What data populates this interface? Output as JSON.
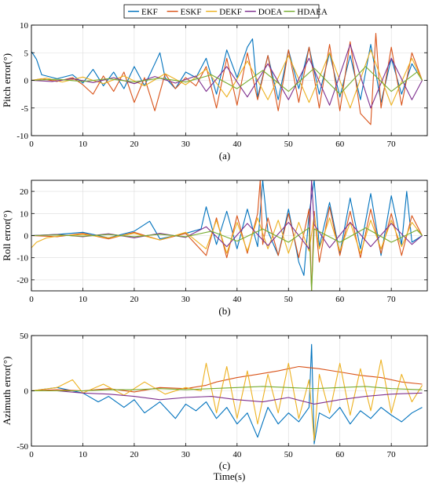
{
  "legend": {
    "entries": [
      {
        "name": "EKF",
        "color": "#0072BD"
      },
      {
        "name": "ESKF",
        "color": "#D95319"
      },
      {
        "name": "DEKF",
        "color": "#EDB120"
      },
      {
        "name": "DOEA",
        "color": "#7E2F8E"
      },
      {
        "name": "HDAEA",
        "color": "#77AC30"
      }
    ],
    "placement": "top-center"
  },
  "xlabel": "Time(s)",
  "chart_data": [
    {
      "type": "line",
      "caption": "(a)",
      "ylabel": "Pitch error(°)",
      "xlim": [
        0,
        77
      ],
      "ylim": [
        -10,
        10
      ],
      "xticks": [
        0,
        10,
        20,
        30,
        40,
        50,
        60,
        70
      ],
      "yticks": [
        -10,
        -5,
        0,
        5,
        10
      ],
      "grid": true,
      "series": [
        {
          "name": "EKF",
          "x": [
            0,
            1,
            2,
            5,
            8,
            10,
            12,
            14,
            16,
            18,
            20,
            22,
            24,
            25,
            26,
            28,
            30,
            32,
            34,
            36,
            38,
            40,
            42,
            43,
            44,
            46,
            48,
            50,
            52,
            54,
            56,
            58,
            60,
            62,
            64,
            66,
            68,
            70,
            72,
            74,
            76
          ],
          "y": [
            5.2,
            3.8,
            1.0,
            0.3,
            1.0,
            -0.5,
            2.0,
            -1.0,
            1.5,
            -1.5,
            2.5,
            -1.0,
            3.0,
            5.0,
            0.5,
            -1.5,
            1.5,
            0.5,
            4.0,
            -2.5,
            5.5,
            0.5,
            6.0,
            7.5,
            -3.0,
            4.5,
            -3.5,
            5.5,
            -1.5,
            6.0,
            -2.5,
            5.0,
            -3.0,
            4.5,
            -3.5,
            6.5,
            -4.0,
            4.0,
            -2.5,
            3.0,
            0.0
          ]
        },
        {
          "name": "ESKF",
          "x": [
            0,
            2,
            5,
            8,
            10,
            12,
            14,
            16,
            18,
            20,
            22,
            24,
            26,
            28,
            30,
            32,
            34,
            36,
            38,
            40,
            42,
            44,
            46,
            48,
            50,
            52,
            54,
            56,
            58,
            60,
            62,
            64,
            66,
            67,
            68,
            70,
            72,
            74,
            76
          ],
          "y": [
            0.0,
            0.3,
            -0.2,
            0.5,
            -0.8,
            -2.5,
            0.8,
            -2.0,
            1.5,
            -4.0,
            0.5,
            -5.5,
            1.2,
            -1.5,
            0.5,
            -1.0,
            2.5,
            -5.0,
            4.0,
            -4.5,
            5.0,
            -3.5,
            4.5,
            -5.5,
            5.5,
            -4.0,
            6.0,
            -5.0,
            6.5,
            -5.5,
            7.0,
            -6.0,
            -8.0,
            8.5,
            -5.0,
            6.0,
            -4.5,
            5.0,
            0.0
          ]
        },
        {
          "name": "DEKF",
          "x": [
            0,
            3,
            6,
            10,
            14,
            18,
            22,
            26,
            30,
            34,
            38,
            42,
            46,
            50,
            54,
            58,
            62,
            66,
            70,
            74,
            76
          ],
          "y": [
            0.0,
            0.4,
            -0.3,
            0.6,
            -0.6,
            0.8,
            -1.0,
            1.2,
            -0.8,
            2.0,
            -3.0,
            3.5,
            -3.5,
            4.5,
            -4.0,
            5.0,
            -5.0,
            5.5,
            -4.5,
            4.0,
            0.0
          ]
        },
        {
          "name": "DOEA",
          "x": [
            0,
            4,
            8,
            12,
            16,
            20,
            24,
            28,
            32,
            34,
            38,
            42,
            46,
            50,
            54,
            58,
            62,
            66,
            70,
            74,
            76
          ],
          "y": [
            0.0,
            -0.2,
            0.3,
            -0.4,
            0.5,
            -0.6,
            0.7,
            -0.5,
            0.8,
            -2.0,
            2.5,
            -3.0,
            3.0,
            -3.5,
            4.0,
            -4.5,
            6.5,
            -5.0,
            4.0,
            -3.5,
            0.0
          ]
        },
        {
          "name": "HDAEA",
          "x": [
            0,
            5,
            10,
            15,
            20,
            25,
            30,
            35,
            40,
            45,
            50,
            55,
            60,
            65,
            70,
            75,
            76
          ],
          "y": [
            0.0,
            0.2,
            -0.2,
            0.3,
            -0.3,
            0.4,
            -0.3,
            1.0,
            -1.5,
            1.8,
            -2.0,
            2.2,
            -2.5,
            2.5,
            -2.0,
            1.5,
            0.0
          ]
        }
      ]
    },
    {
      "type": "line",
      "caption": "(b)",
      "ylabel": "Roll error(°)",
      "xlim": [
        0,
        77
      ],
      "ylim": [
        -25,
        25
      ],
      "xticks": [
        0,
        10,
        20,
        30,
        40,
        50,
        60,
        70
      ],
      "yticks": [
        -20,
        -10,
        0,
        10,
        20
      ],
      "grid": true,
      "series": [
        {
          "name": "EKF",
          "x": [
            0,
            5,
            10,
            15,
            20,
            23,
            25,
            30,
            33,
            34,
            36,
            38,
            40,
            42,
            44,
            45,
            46,
            48,
            50,
            52,
            53,
            54,
            55,
            56,
            58,
            60,
            62,
            64,
            66,
            68,
            70,
            72,
            73,
            74,
            76
          ],
          "y": [
            0.0,
            0.5,
            1.5,
            -1.0,
            2.0,
            6.5,
            -1.5,
            1.0,
            3.0,
            13.0,
            -4.0,
            11.0,
            -6.0,
            12.0,
            -5.0,
            25.0,
            2.0,
            -9.0,
            12.0,
            -12.0,
            -18.0,
            10.0,
            25.0,
            -5.0,
            15.0,
            -8.0,
            17.0,
            -6.0,
            19.0,
            -9.0,
            18.0,
            -4.0,
            20.0,
            -3.0,
            0.0
          ]
        },
        {
          "name": "ESKF",
          "x": [
            0,
            5,
            10,
            15,
            20,
            25,
            30,
            34,
            36,
            38,
            40,
            42,
            44,
            44.5,
            45,
            46,
            48,
            50,
            52,
            54,
            54.5,
            55,
            56,
            58,
            60,
            62,
            64,
            66,
            68,
            70,
            72,
            74,
            76
          ],
          "y": [
            0.0,
            -0.5,
            1.0,
            -1.5,
            1.5,
            -2.0,
            1.0,
            -9.0,
            8.0,
            -10.0,
            9.0,
            -8.0,
            10.0,
            25.0,
            -4.0,
            8.0,
            -9.0,
            10.0,
            -10.0,
            12.0,
            -25.0,
            11.0,
            -12.0,
            13.0,
            -9.0,
            11.0,
            -10.0,
            12.0,
            -8.0,
            10.0,
            -9.0,
            9.0,
            0.0
          ]
        },
        {
          "name": "DEKF",
          "x": [
            0,
            1,
            3,
            6,
            10,
            15,
            20,
            25,
            30,
            34,
            36,
            38,
            40,
            42,
            44,
            46,
            48,
            50,
            52,
            54,
            55,
            56,
            58,
            60,
            62,
            64,
            66,
            68,
            70,
            72,
            74,
            76
          ],
          "y": [
            -5.5,
            -3.0,
            -1.0,
            0.0,
            0.5,
            -1.0,
            1.0,
            -2.0,
            1.5,
            -6.0,
            7.0,
            -8.0,
            6.0,
            -7.0,
            8.0,
            -6.0,
            7.0,
            -8.0,
            6.0,
            -7.0,
            9.0,
            -6.0,
            8.0,
            -7.0,
            6.0,
            -8.0,
            7.0,
            -6.0,
            7.0,
            -5.0,
            6.0,
            0.0
          ]
        },
        {
          "name": "DOEA",
          "x": [
            0,
            5,
            10,
            15,
            20,
            25,
            30,
            34,
            38,
            42,
            46,
            50,
            54,
            54.5,
            55,
            58,
            62,
            66,
            70,
            74,
            76
          ],
          "y": [
            0.0,
            0.5,
            -0.5,
            0.8,
            -1.0,
            1.0,
            -0.8,
            4.0,
            -5.0,
            5.5,
            -4.5,
            6.0,
            -6.0,
            25.0,
            5.0,
            -5.5,
            6.0,
            -5.0,
            5.5,
            -4.0,
            0.0
          ]
        },
        {
          "name": "HDAEA",
          "x": [
            0,
            5,
            10,
            15,
            20,
            25,
            30,
            35,
            40,
            45,
            50,
            54,
            54.5,
            55,
            60,
            65,
            70,
            75,
            76
          ],
          "y": [
            0.0,
            0.3,
            -0.3,
            0.5,
            -0.5,
            0.6,
            -0.5,
            2.0,
            -2.5,
            3.0,
            -3.0,
            3.5,
            -25.0,
            3.0,
            -3.0,
            3.5,
            -3.0,
            2.5,
            0.0
          ]
        }
      ]
    },
    {
      "type": "line",
      "caption": "(c)",
      "ylabel": "Azimuth error(°)",
      "xlim": [
        0,
        77
      ],
      "ylim": [
        -50,
        50
      ],
      "xticks": [
        0,
        10,
        20,
        30,
        40,
        50,
        60,
        70
      ],
      "yticks": [
        -50,
        0,
        50
      ],
      "grid": true,
      "series": [
        {
          "name": "EKF",
          "x": [
            0,
            5,
            10,
            13,
            15,
            18,
            20,
            22,
            25,
            28,
            30,
            32,
            34,
            36,
            38,
            40,
            42,
            44,
            46,
            48,
            50,
            52,
            54,
            54.5,
            55,
            56,
            58,
            60,
            62,
            64,
            66,
            68,
            70,
            72,
            74,
            76
          ],
          "y": [
            0,
            3,
            -2,
            -10,
            -5,
            -15,
            -8,
            -20,
            -10,
            -25,
            -12,
            -18,
            -10,
            -25,
            -15,
            -30,
            -20,
            -42,
            -15,
            -30,
            -20,
            -28,
            -15,
            42,
            -48,
            -20,
            -25,
            -15,
            -30,
            -18,
            -25,
            -15,
            -22,
            -28,
            -20,
            -15
          ]
        },
        {
          "name": "ESKF",
          "x": [
            0,
            5,
            10,
            15,
            20,
            25,
            30,
            34,
            36,
            40,
            44,
            48,
            52,
            56,
            60,
            64,
            68,
            72,
            76
          ],
          "y": [
            0,
            1,
            0,
            2,
            -1,
            3,
            2,
            5,
            8,
            12,
            15,
            18,
            22,
            20,
            17,
            14,
            12,
            8,
            6
          ]
        },
        {
          "name": "DEKF",
          "x": [
            0,
            5,
            8,
            10,
            14,
            18,
            22,
            26,
            30,
            33,
            34,
            36,
            38,
            40,
            42,
            44,
            46,
            48,
            50,
            52,
            54,
            55,
            56,
            58,
            60,
            62,
            64,
            66,
            68,
            70,
            72,
            74,
            76
          ],
          "y": [
            0,
            3,
            10,
            -2,
            6,
            -4,
            8,
            -3,
            3,
            0,
            25,
            -20,
            22,
            -25,
            18,
            -30,
            15,
            -20,
            25,
            -25,
            10,
            -45,
            15,
            -20,
            25,
            -22,
            20,
            -18,
            28,
            -20,
            15,
            -10,
            5
          ]
        },
        {
          "name": "DOEA",
          "x": [
            0,
            5,
            10,
            15,
            20,
            25,
            30,
            35,
            40,
            45,
            50,
            55,
            60,
            65,
            70,
            76
          ],
          "y": [
            0,
            0,
            -2,
            -3,
            -5,
            -8,
            -6,
            -5,
            -8,
            -10,
            -6,
            -12,
            -8,
            -5,
            -3,
            -2
          ]
        },
        {
          "name": "HDAEA",
          "x": [
            0,
            5,
            10,
            15,
            20,
            25,
            30,
            35,
            40,
            45,
            50,
            55,
            60,
            65,
            70,
            76
          ],
          "y": [
            0,
            0,
            0,
            1,
            1,
            2,
            1,
            2,
            3,
            4,
            3,
            2,
            3,
            4,
            2,
            1
          ]
        }
      ]
    }
  ]
}
